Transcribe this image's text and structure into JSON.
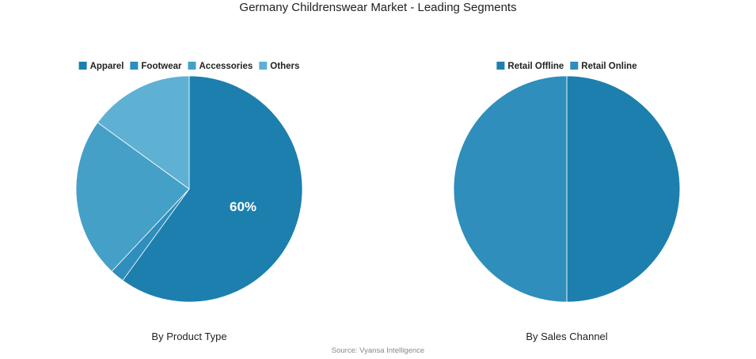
{
  "title": "Germany Childrenswear Market - Leading Segments",
  "source": "Source: Vyansa Intelligence",
  "chart_data": [
    {
      "type": "pie",
      "subtitle": "By Product Type",
      "categories": [
        "Apparel",
        "Footwear",
        "Accessories",
        "Others"
      ],
      "values": [
        60,
        2,
        23,
        15
      ],
      "colors": [
        "#1c7fae",
        "#2f8ebb",
        "#45a0c7",
        "#5eb1d3"
      ],
      "data_labels": [
        "60%",
        "",
        "",
        ""
      ],
      "legend_position": "top"
    },
    {
      "type": "pie",
      "subtitle": "By Sales Channel",
      "categories": [
        "Retail Offline",
        "Retail Online"
      ],
      "values": [
        50,
        50
      ],
      "colors": [
        "#1c7fae",
        "#2f8ebb"
      ],
      "data_labels": [
        "",
        ""
      ],
      "legend_position": "top"
    }
  ]
}
